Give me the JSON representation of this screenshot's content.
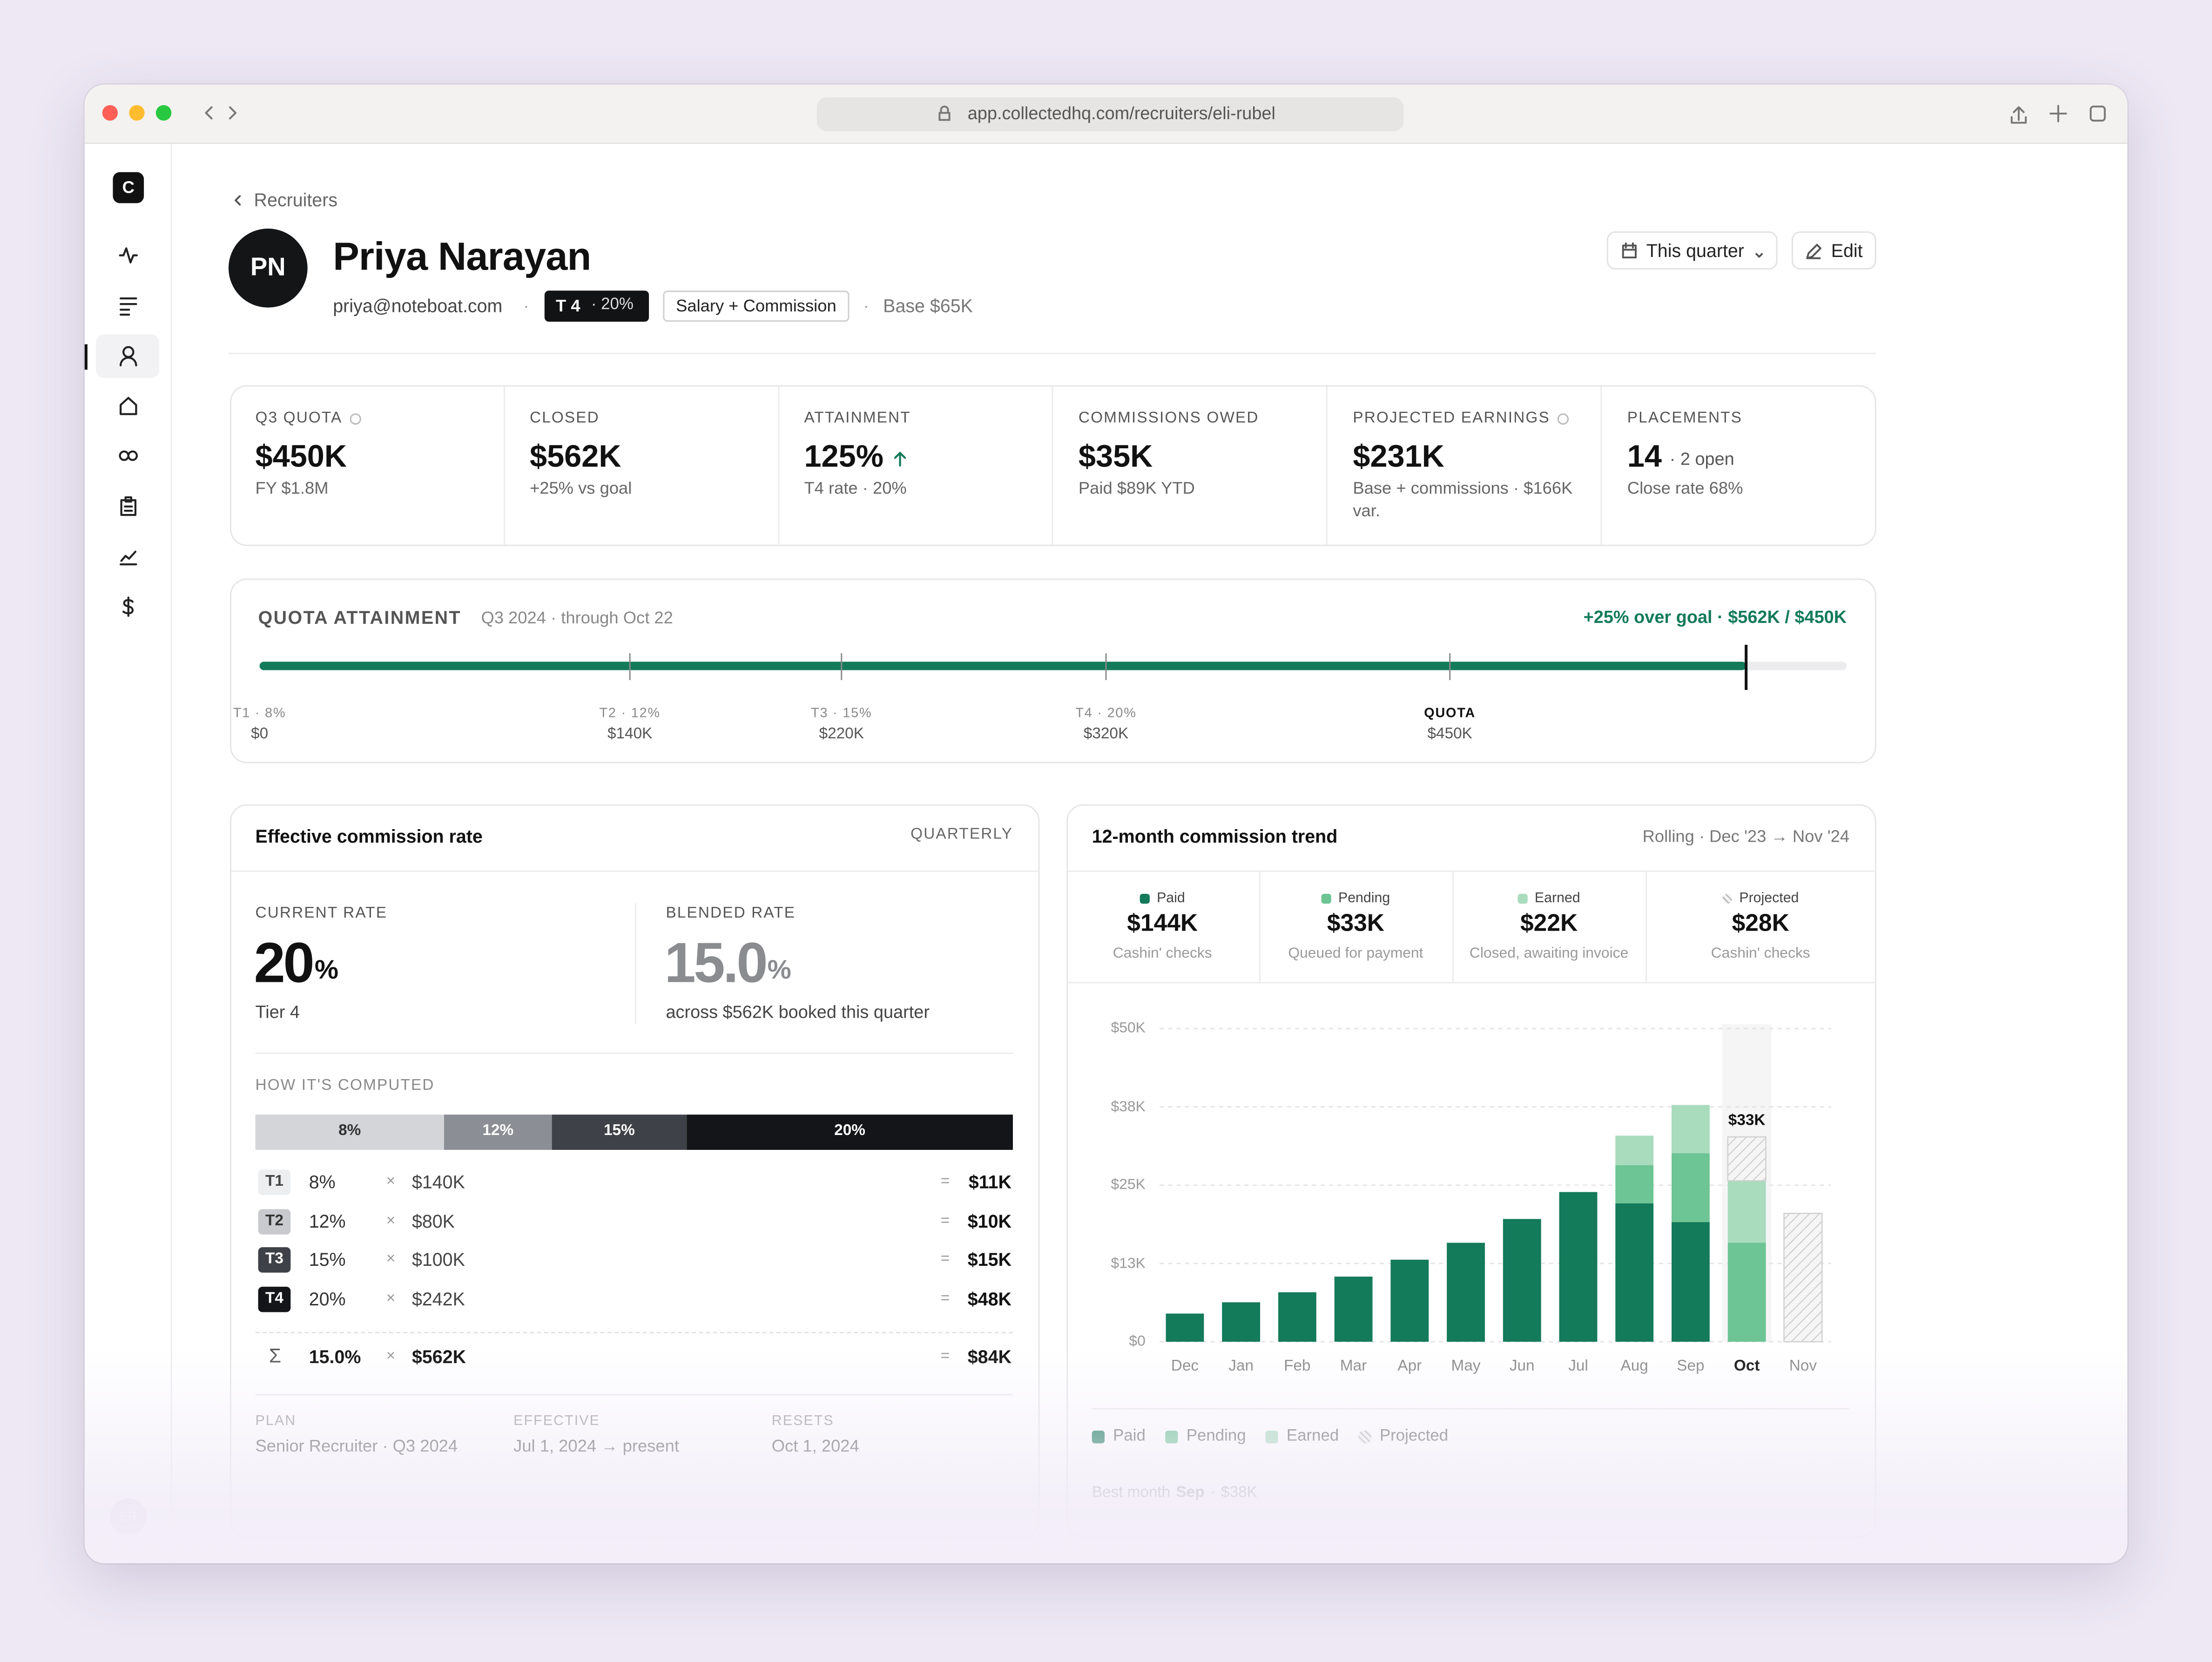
{
  "browser": {
    "url": "app.collectedhq.com/recruiters/eli-rubel"
  },
  "sidebar": {
    "logo": "C",
    "user": "ER"
  },
  "breadcrumb": "Recruiters",
  "profile": {
    "initials": "PN",
    "name": "Priya Narayan",
    "email": "priya@noteboat.com",
    "separator": "·",
    "tier": "T 4",
    "tier_rate": "· 20%",
    "plan": "Salary + Commission",
    "base": "Base $65K"
  },
  "actions": {
    "period": "This quarter",
    "edit": "Edit"
  },
  "kpis": [
    {
      "label": "Q3 QUOTA",
      "help": true,
      "value": "$450K",
      "sub": "FY $1.8M"
    },
    {
      "label": "CLOSED",
      "value": "$562K",
      "sub": "+25% vs goal"
    },
    {
      "label": "ATTAINMENT",
      "value": "125%",
      "trend": "up",
      "sub": "T4 rate · 20%"
    },
    {
      "label": "COMMISSIONS OWED",
      "value": "$35K",
      "sub": "Paid $89K YTD"
    },
    {
      "label": "PROJECTED EARNINGS",
      "help": true,
      "value": "$231K",
      "sub": "Base + commissions · $166K var."
    },
    {
      "label": "PLACEMENTS",
      "value": "14",
      "note": "· 2 open",
      "sub": "Close rate 68%"
    }
  ],
  "rate_card": {
    "title": "Effective commission rate",
    "period": "QUARTERLY",
    "current": {
      "label": "CURRENT RATE",
      "value": "20",
      "unit": "%",
      "sub": "Tier 4"
    },
    "blended": {
      "label": "BLENDED RATE",
      "value": "15.0",
      "unit": "%",
      "sub": "across $562K booked this quarter"
    },
    "computed_label": "HOW IT'S COMPUTED",
    "table": {
      "rows": [
        [
          "T1",
          "8%",
          "×",
          "$140K",
          "=",
          "$11K"
        ],
        [
          "T2",
          "12%",
          "×",
          "$80K",
          "=",
          "$10K"
        ],
        [
          "T3",
          "15%",
          "×",
          "$100K",
          "=",
          "$15K"
        ],
        [
          "T4",
          "20%",
          "×",
          "$242K",
          "=",
          "$48K"
        ]
      ],
      "total": [
        "Σ",
        "15.0%",
        "×",
        "$562K",
        "=",
        "$84K"
      ]
    },
    "footer": [
      {
        "label": "PLAN",
        "value": "Senior Recruiter · Q3 2024"
      },
      {
        "label": "EFFECTIVE",
        "value": "Jul 1, 2024 → present"
      },
      {
        "label": "RESETS",
        "value": "Oct 1, 2024"
      }
    ]
  },
  "trend_card": {
    "title": "12-month commission trend",
    "period": "Rolling · Dec '23 → Nov '24",
    "summary": [
      {
        "name": "Paid",
        "value": "$144K",
        "sub": "Cashin' checks"
      },
      {
        "name": "Pending",
        "value": "$33K",
        "sub": "Queued for payment"
      },
      {
        "name": "Earned",
        "value": "$22K",
        "sub": "Closed, awaiting invoice"
      },
      {
        "name": "Projected",
        "value": "$28K",
        "sub": "Cashin' checks"
      }
    ],
    "best": {
      "label": "Best month",
      "month": "Sep",
      "separator": "·",
      "value": "$38K"
    }
  },
  "chart_data": [
    {
      "type": "progress",
      "title": "QUOTA ATTAINMENT",
      "subtitle": "Q3 2024 · through Oct 22",
      "annotation": "+25% over goal · $562K / $450K",
      "value": 562,
      "xlim": [
        0,
        600
      ],
      "xticks": [
        {
          "value": 0,
          "label": "$0"
        },
        {
          "value": 140,
          "label": "$140K"
        },
        {
          "value": 220,
          "label": "$220K"
        },
        {
          "value": 320,
          "label": "$320K"
        },
        {
          "value": 450,
          "label": "$450K"
        }
      ],
      "tick_names": [
        "T1 · 8%",
        "T2 · 12%",
        "T3 · 15%",
        "T4 · 20%",
        "QUOTA"
      ],
      "color": "#137a5a"
    },
    {
      "type": "bar",
      "stacked": true,
      "grid": true,
      "highlight": "Oct",
      "annotation": "$33K",
      "categories": [
        "Dec",
        "Jan",
        "Feb",
        "Mar",
        "Apr",
        "May",
        "Jun",
        "Jul",
        "Aug",
        "Sep",
        "Oct",
        "Nov"
      ],
      "ylim": [
        0,
        50
      ],
      "yticks": [
        {
          "value": 0,
          "label": "$0"
        },
        {
          "value": 12.5,
          "label": "$13K"
        },
        {
          "value": 25,
          "label": "$25K"
        },
        {
          "value": 37.5,
          "label": "$38K"
        },
        {
          "value": 50,
          "label": "$50K"
        }
      ],
      "series": [
        {
          "name": "Paid",
          "color": "#137a5a",
          "values": [
            4.5,
            6.3,
            7.9,
            10.4,
            13.1,
            15.8,
            19.6,
            23.9,
            22.1,
            19.1,
            null,
            null
          ]
        },
        {
          "name": "Pending",
          "color": "#6dc494",
          "values": [
            null,
            null,
            null,
            null,
            null,
            null,
            null,
            null,
            6.1,
            11.0,
            15.8,
            null
          ]
        },
        {
          "name": "Earned",
          "color": "#a9dbbd",
          "values": [
            null,
            null,
            null,
            null,
            null,
            null,
            null,
            null,
            4.7,
            7.7,
            9.9,
            null
          ]
        },
        {
          "name": "Projected",
          "color": "#cfcfcf",
          "hatch": true,
          "values": [
            null,
            null,
            null,
            null,
            null,
            null,
            null,
            null,
            null,
            null,
            7.0,
            20.5
          ]
        }
      ]
    },
    {
      "type": "breakdown",
      "categories": [
        "8%",
        "12%",
        "15%",
        "20%"
      ],
      "values": [
        140,
        80,
        100,
        242
      ],
      "colors": [
        "#d3d5d8",
        "#8b8e94",
        "#3e4147",
        "#131518"
      ]
    }
  ]
}
